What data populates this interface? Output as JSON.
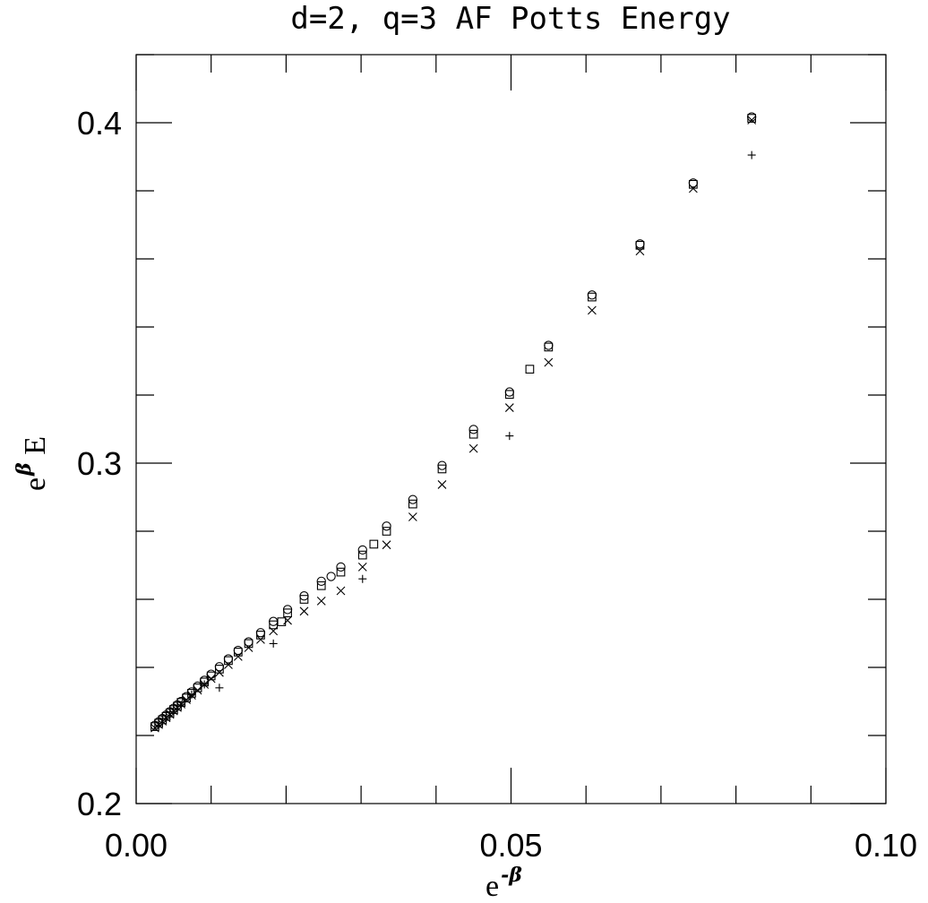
{
  "chart_data": {
    "type": "scatter",
    "title": "d=2, q=3 AF Potts Energy",
    "xlabel": {
      "base": "e",
      "sup": "-β"
    },
    "ylabel": {
      "base": "e",
      "sup": "β",
      "suffix": " E"
    },
    "xlim": [
      0.0,
      0.1
    ],
    "ylim": [
      0.2,
      0.42
    ],
    "xticks": [
      {
        "value": 0.0,
        "label": "0.00"
      },
      {
        "value": 0.05,
        "label": "0.05"
      },
      {
        "value": 0.1,
        "label": "0.10"
      }
    ],
    "yticks": [
      {
        "value": 0.2,
        "label": "0.2"
      },
      {
        "value": 0.3,
        "label": "0.3"
      },
      {
        "value": 0.4,
        "label": "0.4"
      }
    ],
    "x_minor_step": 0.01,
    "y_minor_step": 0.02,
    "grid": false,
    "series": [
      {
        "marker": "circle",
        "x": [
          0.0025,
          0.003,
          0.0035,
          0.004,
          0.0045,
          0.005,
          0.0055,
          0.006,
          0.0067,
          0.0074,
          0.0082,
          0.0091,
          0.01,
          0.0111,
          0.0123,
          0.0136,
          0.015,
          0.0166,
          0.0183,
          0.0202,
          0.0224,
          0.0247,
          0.026,
          0.0273,
          0.0302,
          0.0334,
          0.0369,
          0.0408,
          0.045,
          0.0498,
          0.055,
          0.0608,
          0.0672,
          0.0743,
          0.0821
        ],
        "y": [
          0.223,
          0.224,
          0.225,
          0.226,
          0.227,
          0.228,
          0.229,
          0.23,
          0.2314,
          0.2328,
          0.2345,
          0.2362,
          0.238,
          0.2402,
          0.2425,
          0.245,
          0.2475,
          0.2502,
          0.2535,
          0.257,
          0.261,
          0.2653,
          0.2667,
          0.2695,
          0.2745,
          0.2815,
          0.2893,
          0.2993,
          0.3099,
          0.3209,
          0.3346,
          0.3494,
          0.3644,
          0.3823,
          0.4017
        ]
      },
      {
        "marker": "square",
        "x": [
          0.0025,
          0.003,
          0.0035,
          0.004,
          0.0045,
          0.005,
          0.0055,
          0.006,
          0.0067,
          0.0074,
          0.0082,
          0.0091,
          0.01,
          0.0111,
          0.0123,
          0.0136,
          0.015,
          0.0166,
          0.0183,
          0.0194,
          0.0202,
          0.0224,
          0.0247,
          0.0273,
          0.0302,
          0.0317,
          0.0334,
          0.0369,
          0.0408,
          0.045,
          0.0498,
          0.0525,
          0.055,
          0.0608,
          0.0672,
          0.0743,
          0.0821
        ],
        "y": [
          0.2226,
          0.2236,
          0.2246,
          0.2256,
          0.2266,
          0.2276,
          0.2286,
          0.2297,
          0.231,
          0.2324,
          0.234,
          0.2357,
          0.2375,
          0.2395,
          0.242,
          0.2445,
          0.247,
          0.2495,
          0.2525,
          0.2534,
          0.256,
          0.26,
          0.264,
          0.268,
          0.273,
          0.2762,
          0.28,
          0.288,
          0.2983,
          0.3085,
          0.3202,
          0.3276,
          0.3341,
          0.3488,
          0.364,
          0.3819,
          0.4013
        ]
      },
      {
        "marker": "x",
        "x": [
          0.0025,
          0.003,
          0.0035,
          0.004,
          0.0045,
          0.005,
          0.0055,
          0.006,
          0.0067,
          0.0074,
          0.0082,
          0.0091,
          0.01,
          0.0111,
          0.0123,
          0.0136,
          0.015,
          0.0166,
          0.0183,
          0.0202,
          0.0224,
          0.0247,
          0.0273,
          0.0302,
          0.0334,
          0.0369,
          0.0408,
          0.045,
          0.0498,
          0.055,
          0.0608,
          0.0672,
          0.0743,
          0.0821
        ],
        "y": [
          0.2222,
          0.2232,
          0.2242,
          0.2252,
          0.2262,
          0.2272,
          0.2282,
          0.2292,
          0.2305,
          0.2318,
          0.2333,
          0.235,
          0.2367,
          0.2385,
          0.2408,
          0.2432,
          0.2458,
          0.2482,
          0.2507,
          0.2538,
          0.2565,
          0.2595,
          0.2625,
          0.2695,
          0.276,
          0.2842,
          0.2937,
          0.3043,
          0.3163,
          0.3296,
          0.3449,
          0.3623,
          0.3807,
          0.4008
        ]
      },
      {
        "marker": "plus",
        "x": [
          0.003,
          0.004,
          0.005,
          0.006,
          0.0074,
          0.0091,
          0.0111,
          0.0183,
          0.0302,
          0.0498,
          0.0821
        ],
        "y": [
          0.223,
          0.225,
          0.227,
          0.229,
          0.232,
          0.235,
          0.234,
          0.247,
          0.266,
          0.308,
          0.3905
        ]
      }
    ]
  }
}
